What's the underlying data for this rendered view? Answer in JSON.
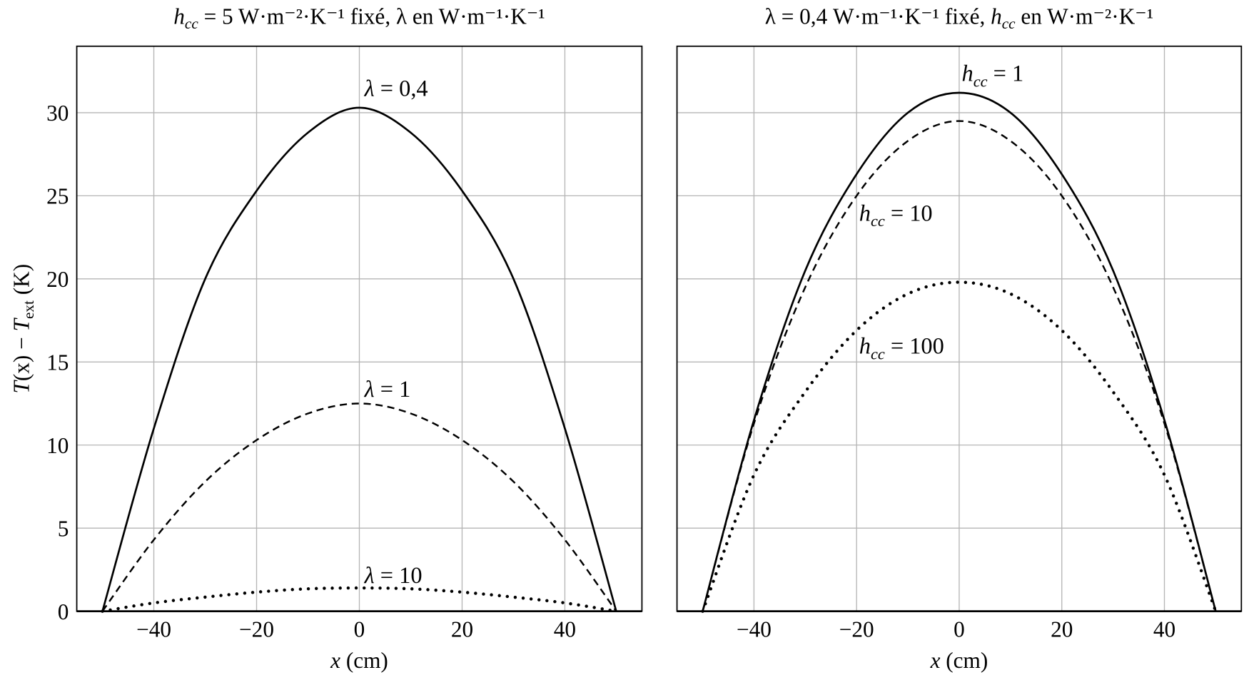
{
  "chart_data": [
    {
      "type": "line",
      "title": {
        "var": "h",
        "sub": "cc",
        "rest": " = 5 W·m⁻²·K⁻¹ fixé, λ en W·m⁻¹·K⁻¹"
      },
      "xlabel": {
        "var": "x",
        "rest": " (cm)"
      },
      "ylabel": {
        "pre": "T",
        "mid": "(x) − ",
        "var2": "T",
        "sub": "ext",
        "rest": " (K)"
      },
      "xlim": [
        -55,
        55
      ],
      "ylim": [
        0,
        34
      ],
      "xticks": [
        -40,
        -20,
        0,
        20,
        40
      ],
      "xtick_labels": [
        "−40",
        "−20",
        "0",
        "20",
        "40"
      ],
      "yticks": [
        0,
        5,
        10,
        15,
        20,
        25,
        30
      ],
      "ytick_labels": [
        "0",
        "5",
        "10",
        "15",
        "20",
        "25",
        "30"
      ],
      "grid": true,
      "x": [
        -50,
        -40,
        -30,
        -20,
        -10,
        0,
        10,
        20,
        30,
        40,
        50
      ],
      "series": [
        {
          "name": "λ = 0,4",
          "style": "solid",
          "values": [
            0,
            11,
            20,
            25.3,
            28.8,
            30.3,
            28.8,
            25.3,
            20,
            11,
            0
          ],
          "label_at": [
            1,
            31
          ]
        },
        {
          "name": "λ = 1",
          "style": "dashed",
          "values": [
            0,
            4.3,
            7.8,
            10.3,
            11.9,
            12.5,
            11.9,
            10.3,
            7.8,
            4.3,
            0
          ],
          "label_at": [
            1,
            12.9
          ]
        },
        {
          "name": "λ = 10",
          "style": "dotted",
          "values": [
            0,
            0.5,
            0.85,
            1.15,
            1.35,
            1.4,
            1.35,
            1.15,
            0.85,
            0.5,
            0
          ],
          "label_at": [
            1,
            1.7
          ]
        }
      ]
    },
    {
      "type": "line",
      "title": {
        "pre": "λ = 0,4 W·m⁻¹·K⁻¹ fixé, ",
        "var": "h",
        "sub": "cc",
        "rest": " en W·m⁻²·K⁻¹"
      },
      "xlabel": {
        "var": "x",
        "rest": " (cm)"
      },
      "xlim": [
        -55,
        55
      ],
      "ylim": [
        0,
        34
      ],
      "xticks": [
        -40,
        -20,
        0,
        20,
        40
      ],
      "xtick_labels": [
        "−40",
        "−20",
        "0",
        "20",
        "40"
      ],
      "yticks": [
        0,
        5,
        10,
        15,
        20,
        25,
        30
      ],
      "grid": true,
      "x": [
        -50,
        -40,
        -30,
        -20,
        -10,
        0,
        10,
        20,
        30,
        40,
        50
      ],
      "series": [
        {
          "name": "h_cc = 1",
          "var": "h",
          "sub": "cc",
          "rest": " = 1",
          "style": "solid",
          "values": [
            0,
            11.5,
            20.5,
            26.3,
            30,
            31.2,
            30,
            26.3,
            20.5,
            11.5,
            0
          ],
          "label_at": [
            0.5,
            31.9
          ]
        },
        {
          "name": "h_cc = 10",
          "var": "h",
          "sub": "cc",
          "rest": " = 10",
          "style": "dashed",
          "values": [
            0,
            11.3,
            19.5,
            25,
            28.3,
            29.5,
            28.3,
            25,
            19.5,
            11.3,
            0
          ],
          "label_at": [
            -19.5,
            23.5
          ]
        },
        {
          "name": "h_cc = 100",
          "var": "h",
          "sub": "cc",
          "rest": " = 100",
          "style": "dotted",
          "values": [
            0,
            8.2,
            13.2,
            16.9,
            19.1,
            19.8,
            19.1,
            16.9,
            13.2,
            8.2,
            0
          ],
          "label_at": [
            -19.5,
            15.5
          ]
        }
      ]
    }
  ]
}
